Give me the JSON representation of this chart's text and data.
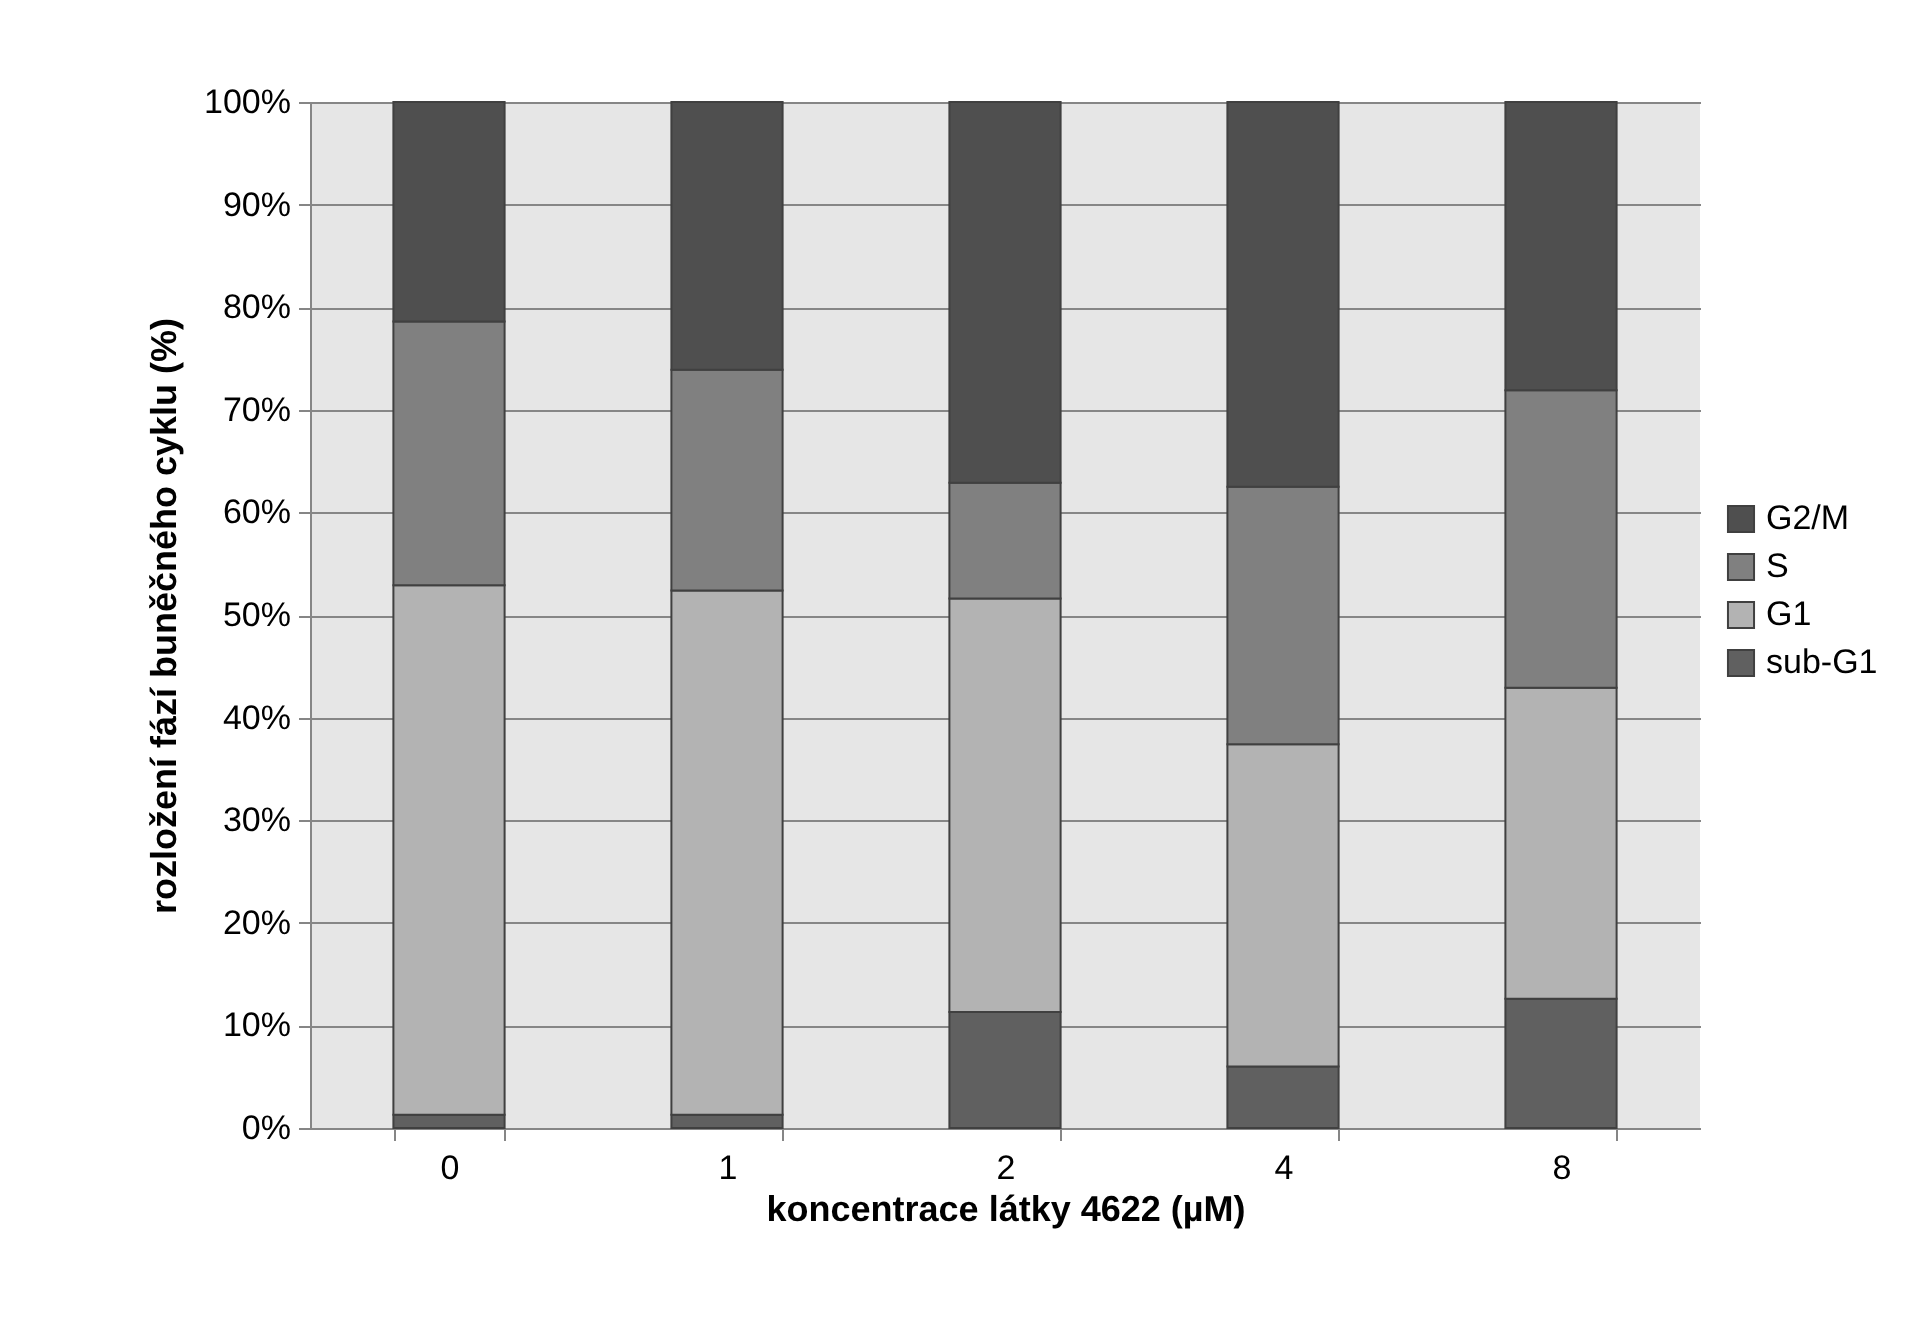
{
  "chart_data": {
    "type": "bar",
    "stacked": true,
    "xlabel": "koncentrace látky 4622 (µM)",
    "ylabel": "rozložení fází buněčného cyklu (%)",
    "categories": [
      "0",
      "1",
      "2",
      "4",
      "8"
    ],
    "series": [
      {
        "name": "sub-G1",
        "color": "#606060",
        "values": [
          1.3,
          1.3,
          11.3,
          6.0,
          12.6
        ]
      },
      {
        "name": "G1",
        "color": "#b3b3b3",
        "values": [
          51.6,
          51.1,
          40.3,
          31.4,
          30.3
        ]
      },
      {
        "name": "S",
        "color": "#808080",
        "values": [
          25.7,
          21.5,
          11.3,
          25.1,
          29.0
        ]
      },
      {
        "name": "G2/M",
        "color": "#4f4f4f",
        "values": [
          21.4,
          26.1,
          37.1,
          37.5,
          28.1
        ]
      }
    ],
    "ylim": [
      0,
      100
    ],
    "yticks": [
      {
        "value": 0,
        "label": "0%"
      },
      {
        "value": 10,
        "label": "10%"
      },
      {
        "value": 20,
        "label": "20%"
      },
      {
        "value": 30,
        "label": "30%"
      },
      {
        "value": 40,
        "label": "40%"
      },
      {
        "value": 50,
        "label": "50%"
      },
      {
        "value": 60,
        "label": "60%"
      },
      {
        "value": 70,
        "label": "70%"
      },
      {
        "value": 80,
        "label": "80%"
      },
      {
        "value": 90,
        "label": "90%"
      },
      {
        "value": 100,
        "label": "100%"
      }
    ],
    "grid": "y",
    "legend": "right"
  }
}
